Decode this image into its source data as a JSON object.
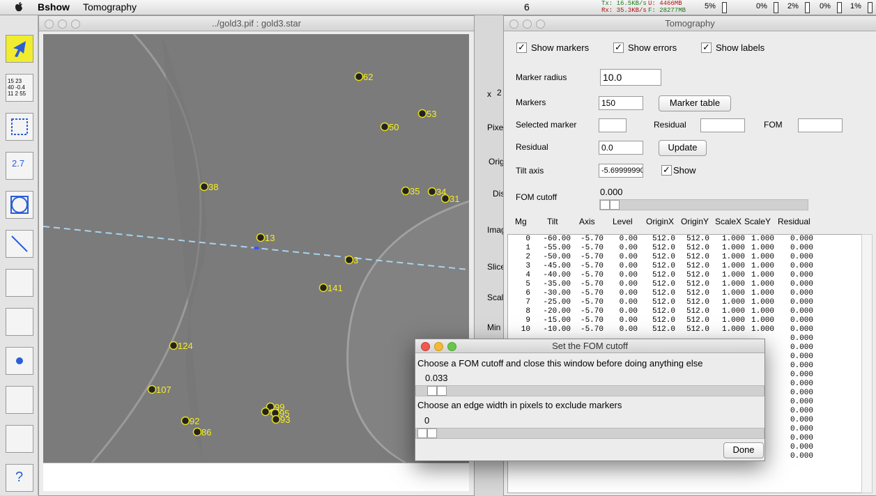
{
  "menubar": {
    "app": "Bshow",
    "menu": "Tomography",
    "net_tx": "Tx: 16.5KB/s",
    "net_rx": "Rx: 35.3KB/s",
    "mem_u": "U:  4466MB",
    "mem_f": "F: 28277MB",
    "badge": "6",
    "cpu": [
      "5%",
      "0%",
      "2%",
      "0%",
      "1%"
    ]
  },
  "image_window": {
    "title": "../gold3.pif : gold3.star",
    "markers": [
      "62",
      "53",
      "50",
      "38",
      "35",
      "34",
      "31",
      "13",
      "3",
      "141",
      "124",
      "107",
      "99",
      "96",
      "95",
      "93",
      "92",
      "86"
    ],
    "side_labels": [
      "x",
      "2",
      "Pixe",
      "Origi",
      "Dis",
      "Imag",
      "Slice",
      "Scal",
      "Min"
    ]
  },
  "toolbar": {
    "table_icon": [
      "15 23",
      "40 -0.4",
      "11 2 55"
    ],
    "measure_icon": "2.7",
    "help_icon": "?"
  },
  "tomography": {
    "title": "Tomography",
    "checkboxes": [
      "Show markers",
      "Show errors",
      "Show labels"
    ],
    "marker_radius_label": "Marker radius",
    "marker_radius": "10.0",
    "markers_label": "Markers",
    "markers": "150",
    "marker_table_button": "Marker table",
    "selected_marker_label": "Selected marker",
    "residual_label_2": "Residual",
    "fom_label": "FOM",
    "residual_label": "Residual",
    "residual": "0.0",
    "update_button": "Update",
    "tilt_axis_label": "Tilt axis",
    "tilt_axis": "-5.69999990",
    "show_label": "Show",
    "fom_cutoff_label": "FOM cutoff",
    "fom_cutoff": "0.000",
    "table": {
      "headers": [
        "Mg",
        "Tilt",
        "Axis",
        "Level",
        "OriginX",
        "OriginY",
        "ScaleX",
        "ScaleY",
        "Residual"
      ],
      "rows": [
        [
          "0",
          "-60.00",
          "-5.70",
          "0.00",
          "512.0",
          "512.0",
          "1.000",
          "1.000",
          "0.000"
        ],
        [
          "1",
          "-55.00",
          "-5.70",
          "0.00",
          "512.0",
          "512.0",
          "1.000",
          "1.000",
          "0.000"
        ],
        [
          "2",
          "-50.00",
          "-5.70",
          "0.00",
          "512.0",
          "512.0",
          "1.000",
          "1.000",
          "0.000"
        ],
        [
          "3",
          "-45.00",
          "-5.70",
          "0.00",
          "512.0",
          "512.0",
          "1.000",
          "1.000",
          "0.000"
        ],
        [
          "4",
          "-40.00",
          "-5.70",
          "0.00",
          "512.0",
          "512.0",
          "1.000",
          "1.000",
          "0.000"
        ],
        [
          "5",
          "-35.00",
          "-5.70",
          "0.00",
          "512.0",
          "512.0",
          "1.000",
          "1.000",
          "0.000"
        ],
        [
          "6",
          "-30.00",
          "-5.70",
          "0.00",
          "512.0",
          "512.0",
          "1.000",
          "1.000",
          "0.000"
        ],
        [
          "7",
          "-25.00",
          "-5.70",
          "0.00",
          "512.0",
          "512.0",
          "1.000",
          "1.000",
          "0.000"
        ],
        [
          "8",
          "-20.00",
          "-5.70",
          "0.00",
          "512.0",
          "512.0",
          "1.000",
          "1.000",
          "0.000"
        ],
        [
          "9",
          "-15.00",
          "-5.70",
          "0.00",
          "512.0",
          "512.0",
          "1.000",
          "1.000",
          "0.000"
        ],
        [
          "10",
          "-10.00",
          "-5.70",
          "0.00",
          "512.0",
          "512.0",
          "1.000",
          "1.000",
          "0.000"
        ]
      ],
      "more_residuals": [
        "0.000",
        "0.000",
        "0.000",
        "0.000",
        "0.000",
        "0.000",
        "0.000",
        "0.000",
        "0.000",
        "0.000",
        "0.000",
        "0.000",
        "0.000",
        "0.000"
      ]
    }
  },
  "dialog": {
    "title": "Set the FOM cutoff",
    "prompt_fom": "Choose a FOM cutoff and close this window before doing anything else",
    "fom_value": "0.033",
    "prompt_edge": "Choose an edge width in pixels to exclude markers",
    "edge_value": "0",
    "done_button": "Done"
  }
}
